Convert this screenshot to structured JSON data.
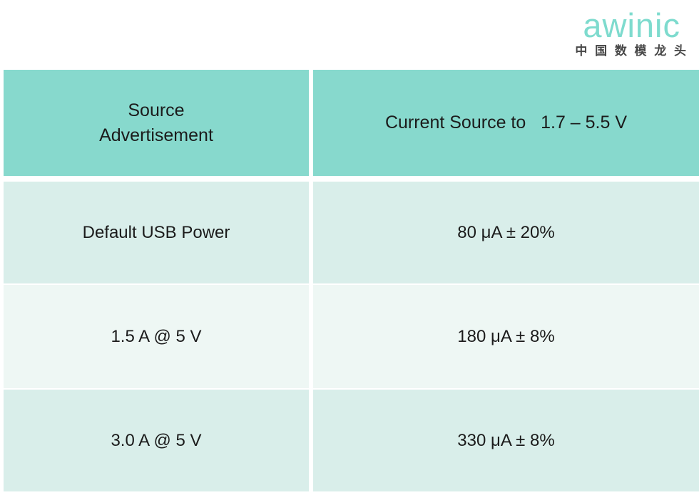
{
  "brand": {
    "logo_text": "awinic",
    "logo_tagline": "中 国 数 模 龙 头",
    "logo_color": "#7edbce",
    "tagline_color": "#474747"
  },
  "colors": {
    "header_bg": "#87d9cd",
    "row_mint_bg": "#d9eeea",
    "row_pale_bg": "#eef7f4",
    "text": "#1b1b1b",
    "page_bg": "#ffffff"
  },
  "table": {
    "columns": [
      {
        "header": "Source\nAdvertisement"
      },
      {
        "header": "Current Source to   1.7 – 5.5 V"
      }
    ],
    "rows": [
      {
        "source": "Default USB Power",
        "current": "80 μA ± 20%"
      },
      {
        "source": "1.5 A @ 5 V",
        "current": "180 μA ± 8%"
      },
      {
        "source": "3.0 A @ 5 V",
        "current": "330 μA ± 8%"
      }
    ]
  },
  "chart_data": {
    "type": "table",
    "title": "Source Advertisement current source values",
    "columns": [
      "Source Advertisement",
      "Current Source to 1.7 – 5.5 V"
    ],
    "rows": [
      [
        "Default USB Power",
        "80 μA ± 20%"
      ],
      [
        "1.5 A @ 5 V",
        "180 μA ± 8%"
      ],
      [
        "3.0 A @ 5 V",
        "330 μA ± 8%"
      ]
    ]
  }
}
